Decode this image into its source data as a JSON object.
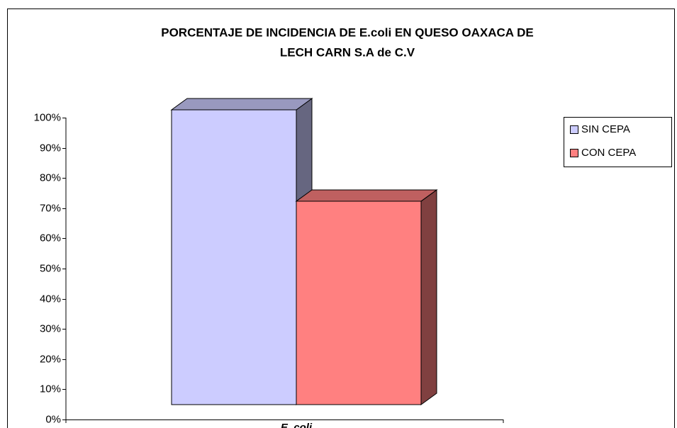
{
  "chart_data": {
    "type": "bar3d",
    "title": [
      "PORCENTAJE DE INCIDENCIA DE E.coli EN QUESO OAXACA DE",
      "LECH CARN S.A de C.V"
    ],
    "categories": [
      "E. coli"
    ],
    "series": [
      {
        "name": "SIN CEPA",
        "color": "#ccccff",
        "values": [
          100
        ]
      },
      {
        "name": "CON CEPA",
        "color": "#ff8080",
        "values": [
          69
        ]
      }
    ],
    "ylim": [
      0,
      100
    ],
    "yticks": [
      {
        "value": 0,
        "label": "0%"
      },
      {
        "value": 10,
        "label": "10%"
      },
      {
        "value": 20,
        "label": "20%"
      },
      {
        "value": 30,
        "label": "30%"
      },
      {
        "value": 40,
        "label": "40%"
      },
      {
        "value": 50,
        "label": "50%"
      },
      {
        "value": 60,
        "label": "60%"
      },
      {
        "value": 70,
        "label": "70%"
      },
      {
        "value": 80,
        "label": "80%"
      },
      {
        "value": 90,
        "label": "90%"
      },
      {
        "value": 100,
        "label": "100%"
      }
    ],
    "legend": "right"
  }
}
